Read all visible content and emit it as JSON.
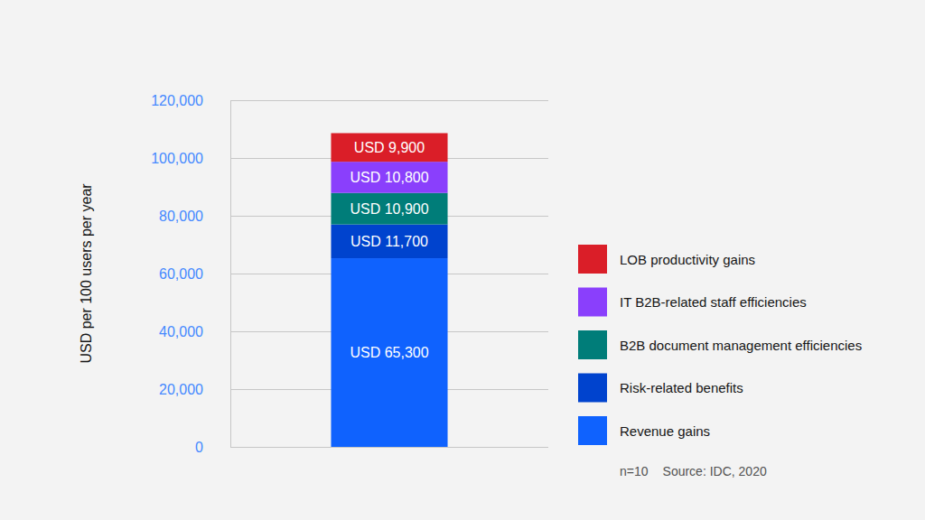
{
  "chart_data": {
    "type": "bar",
    "y_label": "USD per 100 users per year",
    "categories": [
      null
    ],
    "series": [
      {
        "name": "Revenue gains",
        "color": "#0f62fe",
        "values": [
          65300
        ],
        "value_labels": [
          "USD 65,300"
        ]
      },
      {
        "name": "Risk-related benefits",
        "color": "#0043ce",
        "values": [
          11700
        ],
        "value_labels": [
          "USD 11,700"
        ]
      },
      {
        "name": "B2B document management efficiencies",
        "color": "#007d79",
        "values": [
          10900
        ],
        "value_labels": [
          "USD 10,900"
        ]
      },
      {
        "name": "IT B2B-related staff efficiencies",
        "color": "#8a3ffc",
        "values": [
          10800
        ],
        "value_labels": [
          "USD 10,800"
        ]
      },
      {
        "name": "LOB productivity gains",
        "color": "#da1e28",
        "values": [
          9900
        ],
        "value_labels": [
          "USD 9,900"
        ]
      }
    ],
    "ylim": [
      0,
      120000
    ],
    "yticks": [
      0,
      {
        "value": 20000,
        "label": "20,000"
      },
      {
        "value": 40000,
        "label": "40,000"
      },
      {
        "value": 60000,
        "label": "60,000"
      },
      {
        "value": 80000,
        "label": "80,000"
      },
      {
        "value": 100000,
        "label": "100,000"
      },
      {
        "value": 120000,
        "label": "120,000"
      }
    ],
    "grid": true,
    "stacked": true,
    "data_labels": true,
    "tick_labels": "y",
    "legend": "right",
    "annotations": [
      "n=10",
      "Source: IDC, 2020"
    ]
  }
}
